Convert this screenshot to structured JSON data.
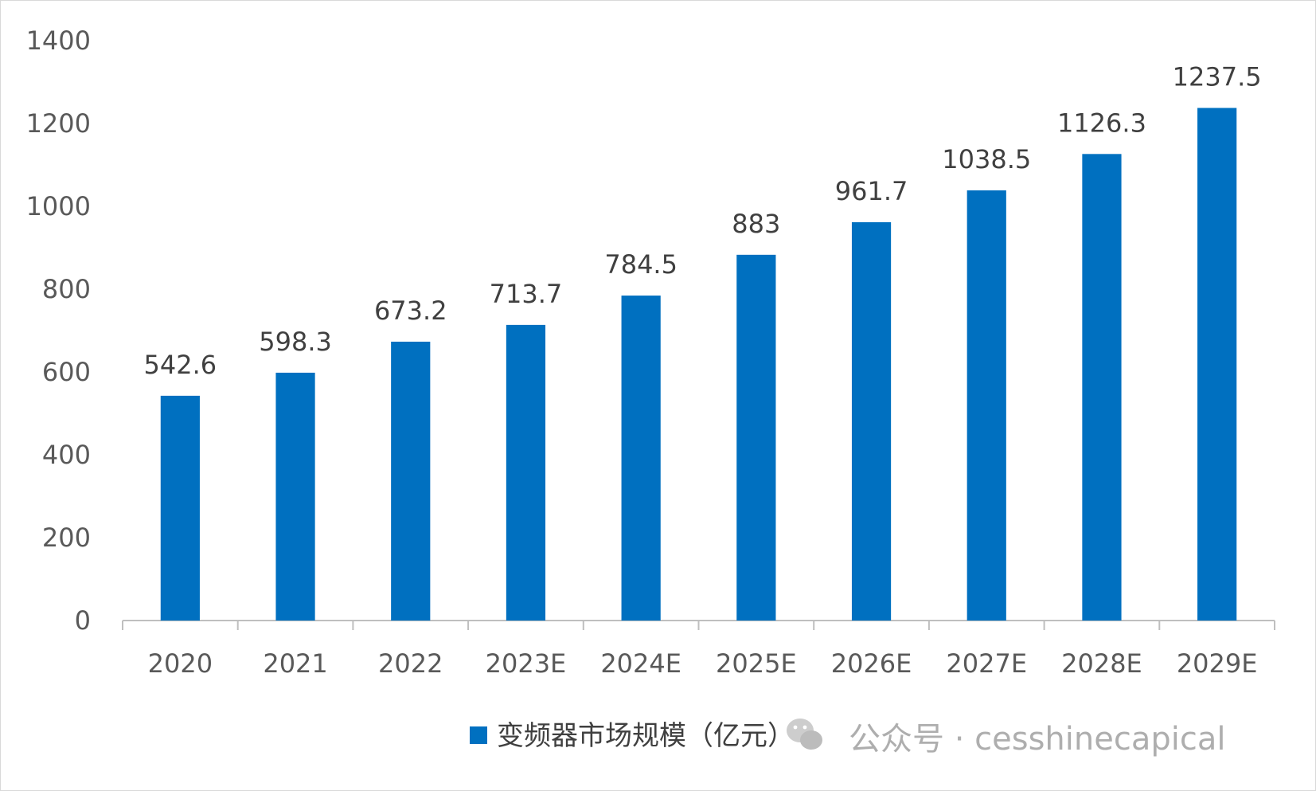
{
  "chart_data": {
    "type": "bar",
    "title": "",
    "xlabel": "",
    "ylabel": "",
    "categories": [
      "2020",
      "2021",
      "2022",
      "2023E",
      "2024E",
      "2025E",
      "2026E",
      "2027E",
      "2028E",
      "2029E"
    ],
    "series": [
      {
        "name": "变频器市场规模（亿元）",
        "values": [
          542.6,
          598.3,
          673.2,
          713.7,
          784.5,
          883,
          961.7,
          1038.5,
          1126.3,
          1237.5
        ],
        "labels": [
          "542.6",
          "598.3",
          "673.2",
          "713.7",
          "784.5",
          "883",
          "961.7",
          "1038.5",
          "1126.3",
          "1237.5"
        ]
      }
    ],
    "ylim": [
      0,
      1400
    ],
    "yticks": [
      0,
      200,
      400,
      600,
      800,
      1000,
      1200,
      1400
    ],
    "grid": false,
    "legend_position": "bottom-right",
    "colors": {
      "bar": "#0070c0",
      "axis": "#bfbfbf",
      "tick_text": "#595959"
    }
  },
  "watermark": {
    "text": "公众号 · cesshinecapical",
    "icon": "wechat-icon"
  }
}
